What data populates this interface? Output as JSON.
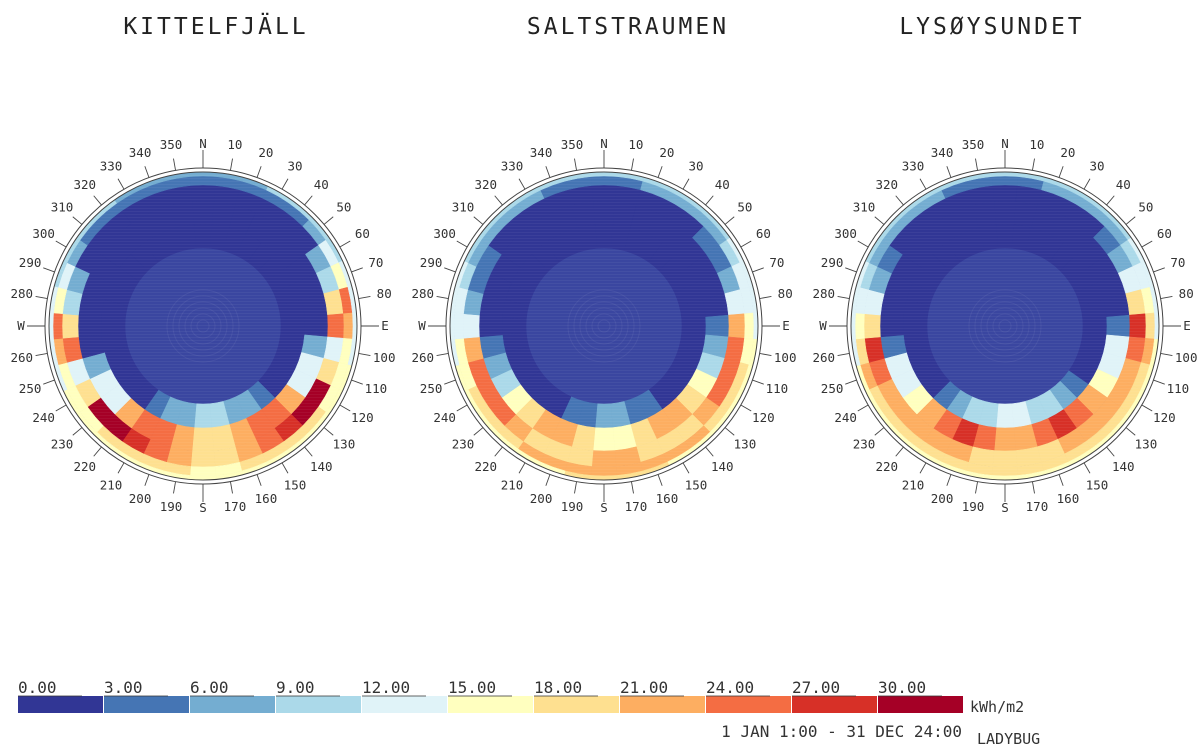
{
  "charts": [
    {
      "title": "KITTELFJÄLL",
      "rings": [
        [
          null,
          null,
          null,
          null,
          null,
          null,
          null,
          null,
          null,
          null,
          null,
          null,
          null,
          null,
          null,
          null,
          null,
          null,
          null,
          null,
          null,
          null,
          null,
          null,
          null,
          null,
          null,
          null,
          null,
          null,
          null,
          null,
          null,
          null,
          null,
          null
        ],
        [
          null,
          null,
          null,
          null,
          null,
          null,
          null,
          null,
          null,
          null,
          null,
          null,
          null,
          null,
          null,
          null,
          null,
          null,
          null,
          null,
          null,
          null,
          null,
          null,
          null,
          null,
          null,
          null,
          null,
          null,
          null,
          null,
          null,
          null,
          null,
          null
        ],
        [
          1,
          1,
          1,
          1,
          1,
          1,
          1,
          1,
          1,
          1,
          1,
          1,
          1,
          1,
          3,
          6,
          8,
          10,
          10,
          8,
          6,
          3,
          1,
          1,
          1,
          1,
          1,
          1,
          1,
          1,
          1,
          1,
          1,
          1,
          1,
          1
        ],
        [
          1,
          1,
          1,
          1,
          1,
          1,
          1,
          1,
          1,
          1,
          6,
          14,
          12,
          22,
          26,
          24,
          21,
          18,
          18,
          21,
          24,
          26,
          22,
          12,
          14,
          6,
          1,
          1,
          1,
          1,
          1,
          1,
          1,
          1,
          1,
          1
        ],
        [
          2,
          2,
          2,
          2,
          2,
          2,
          6,
          10,
          20,
          24,
          14,
          20,
          30,
          31,
          27,
          24,
          22,
          20,
          20,
          22,
          24,
          27,
          31,
          30,
          20,
          14,
          24,
          20,
          10,
          6,
          2,
          2,
          2,
          2,
          2,
          2
        ],
        [
          3,
          3,
          3,
          4,
          5,
          7,
          12,
          16,
          24,
          22,
          16,
          17,
          17,
          18,
          19,
          19,
          18,
          17,
          17,
          18,
          19,
          19,
          18,
          17,
          17,
          16,
          22,
          24,
          16,
          12,
          7,
          5,
          4,
          3,
          3,
          3
        ],
        [
          8,
          8,
          8,
          9,
          9,
          10,
          11,
          12,
          13,
          14,
          14,
          15,
          15,
          16,
          16,
          17,
          17,
          17,
          17,
          17,
          17,
          16,
          16,
          15,
          15,
          14,
          14,
          13,
          12,
          11,
          10,
          9,
          9,
          8,
          8,
          8
        ]
      ]
    },
    {
      "title": "SALTSTRAUMEN",
      "rings": [
        [
          null,
          null,
          null,
          null,
          null,
          null,
          null,
          null,
          null,
          null,
          null,
          null,
          null,
          null,
          null,
          null,
          null,
          null,
          null,
          null,
          null,
          null,
          null,
          null,
          null,
          null,
          null,
          null,
          null,
          null,
          null,
          null,
          null,
          null,
          null,
          null
        ],
        [
          null,
          null,
          null,
          null,
          null,
          null,
          null,
          null,
          null,
          null,
          null,
          null,
          null,
          null,
          null,
          null,
          null,
          null,
          null,
          null,
          null,
          null,
          null,
          null,
          null,
          null,
          null,
          null,
          null,
          null,
          null,
          null,
          null,
          null,
          null,
          null
        ],
        [
          1,
          1,
          1,
          1,
          1,
          1,
          1,
          1,
          1,
          1,
          1,
          1,
          1,
          1,
          2,
          3,
          5,
          6,
          6,
          5,
          3,
          2,
          1,
          1,
          1,
          1,
          1,
          1,
          1,
          1,
          1,
          1,
          1,
          1,
          1,
          1
        ],
        [
          1,
          1,
          1,
          1,
          1,
          1,
          1,
          1,
          1,
          4,
          8,
          11,
          15,
          19,
          21,
          21,
          19,
          17,
          17,
          19,
          21,
          21,
          19,
          15,
          11,
          8,
          4,
          1,
          1,
          1,
          1,
          1,
          1,
          1,
          1,
          1
        ],
        [
          2,
          2,
          2,
          2,
          2,
          3,
          5,
          8,
          12,
          22,
          24,
          26,
          25,
          22,
          20,
          19,
          20,
          21,
          21,
          20,
          19,
          20,
          22,
          25,
          26,
          24,
          22,
          12,
          8,
          5,
          3,
          2,
          2,
          2,
          2,
          2
        ],
        [
          5,
          5,
          6,
          6,
          7,
          8,
          10,
          12,
          14,
          16,
          17,
          18,
          19,
          20,
          21,
          22,
          22,
          21,
          21,
          22,
          22,
          21,
          20,
          19,
          18,
          17,
          16,
          14,
          12,
          10,
          8,
          7,
          6,
          6,
          5,
          5
        ],
        [
          9,
          9,
          10,
          10,
          11,
          11,
          12,
          13,
          14,
          14,
          15,
          15,
          16,
          16,
          17,
          17,
          18,
          18,
          18,
          18,
          17,
          17,
          16,
          16,
          15,
          15,
          14,
          14,
          13,
          12,
          11,
          11,
          10,
          10,
          9,
          9
        ]
      ]
    },
    {
      "title": "LYSØYSUNDET",
      "rings": [
        [
          null,
          null,
          null,
          null,
          null,
          null,
          null,
          null,
          null,
          null,
          null,
          null,
          null,
          null,
          null,
          null,
          null,
          null,
          null,
          null,
          null,
          null,
          null,
          null,
          null,
          null,
          null,
          null,
          null,
          null,
          null,
          null,
          null,
          null,
          null,
          null
        ],
        [
          null,
          null,
          null,
          null,
          null,
          null,
          null,
          null,
          null,
          null,
          null,
          null,
          null,
          null,
          null,
          null,
          null,
          null,
          null,
          null,
          null,
          null,
          null,
          null,
          null,
          null,
          null,
          null,
          null,
          null,
          null,
          null,
          null,
          null,
          null,
          null
        ],
        [
          1,
          1,
          1,
          1,
          1,
          1,
          1,
          1,
          1,
          1,
          1,
          1,
          1,
          3,
          6,
          9,
          11,
          12,
          12,
          11,
          9,
          6,
          3,
          1,
          1,
          1,
          1,
          1,
          1,
          1,
          1,
          1,
          1,
          1,
          1,
          1
        ],
        [
          1,
          1,
          1,
          1,
          1,
          1,
          1,
          1,
          1,
          5,
          12,
          14,
          16,
          22,
          25,
          27,
          25,
          23,
          23,
          25,
          27,
          25,
          22,
          16,
          14,
          12,
          5,
          1,
          1,
          1,
          1,
          1,
          1,
          1,
          1,
          1
        ],
        [
          2,
          2,
          2,
          2,
          2,
          3,
          8,
          12,
          18,
          29,
          26,
          22,
          22,
          23,
          21,
          21,
          20,
          20,
          20,
          20,
          21,
          21,
          23,
          22,
          22,
          26,
          29,
          18,
          12,
          8,
          3,
          2,
          2,
          2,
          2,
          2
        ],
        [
          5,
          5,
          6,
          6,
          7,
          8,
          11,
          14,
          17,
          20,
          21,
          20,
          20,
          20,
          19,
          19,
          18,
          18,
          18,
          18,
          19,
          19,
          20,
          20,
          20,
          21,
          20,
          17,
          14,
          11,
          8,
          7,
          6,
          6,
          5,
          5
        ],
        [
          9,
          9,
          10,
          10,
          11,
          11,
          12,
          13,
          14,
          14,
          15,
          15,
          16,
          16,
          16,
          17,
          17,
          17,
          17,
          17,
          17,
          16,
          16,
          16,
          15,
          15,
          14,
          14,
          13,
          12,
          11,
          11,
          10,
          10,
          9,
          9
        ]
      ]
    }
  ],
  "directions": {
    "north": "N",
    "east": "E",
    "south": "S",
    "west": "W"
  },
  "legend": {
    "ticks": [
      "0.00",
      "3.00",
      "6.00",
      "9.00",
      "12.00",
      "15.00",
      "18.00",
      "21.00",
      "24.00",
      "27.00",
      "30.00"
    ],
    "colors": [
      "#313695",
      "#4575b4",
      "#74add1",
      "#abd9e9",
      "#e0f3f8",
      "#ffffbf",
      "#fee090",
      "#fdae61",
      "#f46d43",
      "#d73027",
      "#a50026"
    ],
    "min": 0,
    "max": 33,
    "unit": "kWh/m2",
    "period": "1 JAN 1:00 - 31 DEC 24:00",
    "credit": "LADYBUG"
  }
}
